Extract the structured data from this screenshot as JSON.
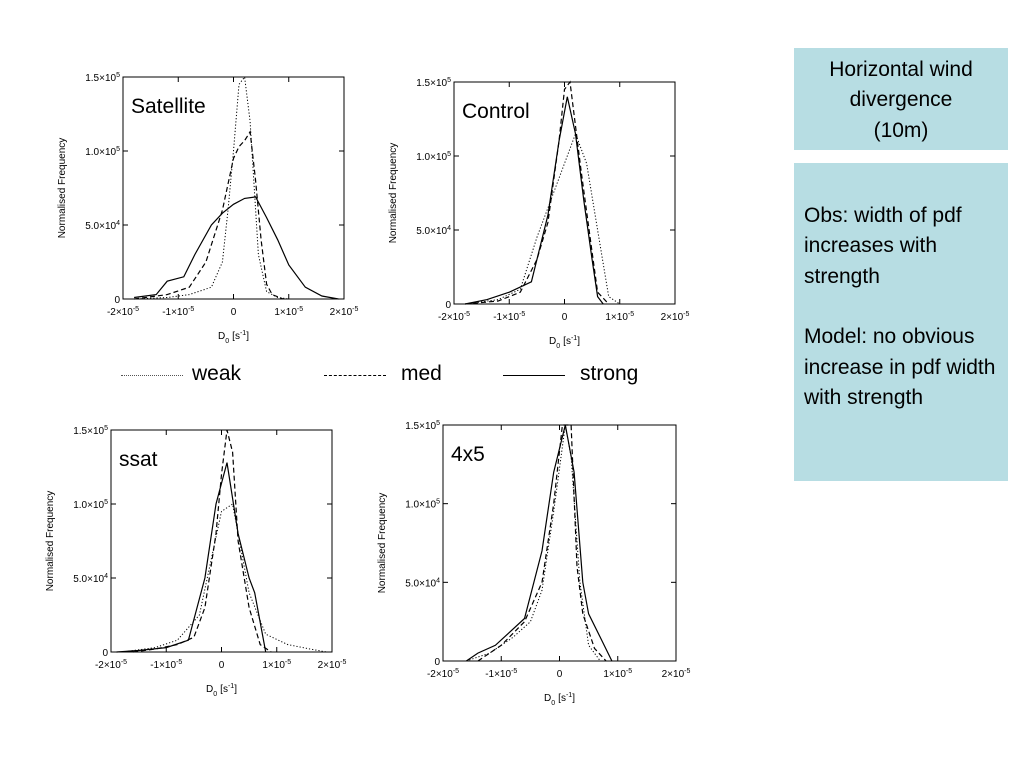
{
  "title_box": {
    "lines": [
      "Horizontal wind",
      "divergence",
      "(10m)"
    ]
  },
  "notes": {
    "obs": "Obs: width of pdf increases with strength",
    "model": "Model: no obvious increase in pdf width with strength"
  },
  "legend": [
    {
      "label": "weak",
      "style": "dotted"
    },
    {
      "label": "med",
      "style": "dashed"
    },
    {
      "label": "strong",
      "style": "solid"
    }
  ],
  "chart_data": [
    {
      "type": "line",
      "title": "Satellite",
      "ylabel": "Normalised Frequency",
      "xlabel_main": "D",
      "xlabel_sub": "0",
      "xlabel_unit": "[s-1]",
      "xlim": [
        -2e-05,
        2e-05
      ],
      "ylim": [
        0,
        150000
      ],
      "xticks": [
        -2e-05,
        -1e-05,
        0,
        1e-05,
        2e-05
      ],
      "xtick_labels": [
        "-2×10-5",
        "-1×10-5",
        "0",
        "1×10-5",
        "2×10-5"
      ],
      "yticks": [
        0,
        50000,
        100000,
        150000
      ],
      "ytick_labels": [
        "0",
        "5.0×104",
        "1.0×105",
        "1.5×105"
      ],
      "series": [
        {
          "name": "weak",
          "style": "dotted",
          "x": [
            -1.8e-05,
            -1.2e-05,
            -8e-06,
            -4e-06,
            -2e-06,
            -1e-06,
            0,
            1e-06,
            2e-06,
            3e-06,
            4.5e-06,
            6e-06,
            8e-06,
            1e-05
          ],
          "y": [
            0,
            1000,
            3000,
            8000,
            25000,
            60000,
            100000,
            145000,
            150000,
            120000,
            30000,
            5000,
            1000,
            0
          ]
        },
        {
          "name": "med",
          "style": "dashed",
          "x": [
            -1.8e-05,
            -1.2e-05,
            -8e-06,
            -5e-06,
            -2e-06,
            0,
            1e-06,
            2e-06,
            3e-06,
            4e-06,
            5e-06,
            6e-06,
            7e-06,
            9e-06
          ],
          "y": [
            0,
            3000,
            8000,
            25000,
            60000,
            95000,
            103000,
            107000,
            113000,
            80000,
            40000,
            10000,
            3000,
            0
          ]
        },
        {
          "name": "strong",
          "style": "solid",
          "x": [
            -1.8e-05,
            -1.4e-05,
            -1.2e-05,
            -9e-06,
            -7e-06,
            -4e-06,
            -2e-06,
            0,
            2e-06,
            4e-06,
            6e-06,
            8e-06,
            1e-05,
            1.3e-05,
            1.6e-05,
            1.9e-05
          ],
          "y": [
            1000,
            3000,
            12000,
            15000,
            30000,
            50000,
            58000,
            64000,
            68000,
            69000,
            55000,
            40000,
            23000,
            8000,
            2000,
            0
          ]
        }
      ]
    },
    {
      "type": "line",
      "title": "Control",
      "ylabel": "Normalised Frequency",
      "xlabel_main": "D",
      "xlabel_sub": "0",
      "xlabel_unit": "[s-1]",
      "xlim": [
        -2e-05,
        2e-05
      ],
      "ylim": [
        0,
        150000
      ],
      "xticks": [
        -2e-05,
        -1e-05,
        0,
        1e-05,
        2e-05
      ],
      "xtick_labels": [
        "-2×10-5",
        "-1×10-5",
        "0",
        "1×10-5",
        "2×10-5"
      ],
      "yticks": [
        0,
        50000,
        100000,
        150000
      ],
      "ytick_labels": [
        "0",
        "5.0×104",
        "1.0×105",
        "1.5×105"
      ],
      "series": [
        {
          "name": "weak",
          "style": "dotted",
          "x": [
            -1.8e-05,
            -1.2e-05,
            -8e-06,
            -5e-06,
            -2e-06,
            0,
            2e-06,
            4e-06,
            6e-06,
            8e-06,
            1e-05
          ],
          "y": [
            0,
            3000,
            10000,
            45000,
            75000,
            95000,
            115000,
            95000,
            50000,
            5000,
            0
          ]
        },
        {
          "name": "med",
          "style": "dashed",
          "x": [
            -1.8e-05,
            -1.2e-05,
            -8e-06,
            -5e-06,
            -3e-06,
            -1e-06,
            0,
            1e-06,
            3e-06,
            5e-06,
            6e-06,
            8e-06
          ],
          "y": [
            0,
            2000,
            8000,
            30000,
            55000,
            110000,
            145000,
            150000,
            90000,
            35000,
            8000,
            0
          ]
        },
        {
          "name": "strong",
          "style": "solid",
          "x": [
            -1.8e-05,
            -1.4e-05,
            -1e-05,
            -6e-06,
            -3e-06,
            -1e-06,
            5e-07,
            2e-06,
            3.5e-06,
            5e-06,
            6e-06,
            7e-06
          ],
          "y": [
            0,
            3000,
            8000,
            15000,
            60000,
            110000,
            140000,
            115000,
            70000,
            30000,
            5000,
            0
          ]
        }
      ]
    },
    {
      "type": "line",
      "title": "ssat",
      "ylabel": "Normalised Frequency",
      "xlabel_main": "D",
      "xlabel_sub": "0",
      "xlabel_unit": "[s-1]",
      "xlim": [
        -2e-05,
        2e-05
      ],
      "ylim": [
        0,
        150000
      ],
      "xticks": [
        -2e-05,
        -1e-05,
        0,
        1e-05,
        2e-05
      ],
      "xtick_labels": [
        "-2×10-5",
        "-1×10-5",
        "0",
        "1×10-5",
        "2×10-5"
      ],
      "yticks": [
        0,
        50000,
        100000,
        150000
      ],
      "ytick_labels": [
        "0",
        "5.0×104",
        "1.0×105",
        "1.5×105"
      ],
      "series": [
        {
          "name": "weak",
          "style": "dotted",
          "x": [
            -1.8e-05,
            -1.2e-05,
            -8e-06,
            -4e-06,
            -2e-06,
            0,
            2e-06,
            5e-06,
            8e-06,
            1.2e-05,
            1.6e-05,
            1.9e-05
          ],
          "y": [
            0,
            3000,
            8000,
            25000,
            60000,
            95000,
            100000,
            40000,
            12000,
            5000,
            2000,
            0
          ]
        },
        {
          "name": "med",
          "style": "dashed",
          "x": [
            -1.6e-05,
            -1.2e-05,
            -8e-06,
            -5e-06,
            -3e-06,
            -1e-06,
            0,
            1e-06,
            2e-06,
            3e-06,
            5e-06,
            7e-06,
            9e-06
          ],
          "y": [
            0,
            2000,
            5000,
            10000,
            30000,
            80000,
            120000,
            150000,
            135000,
            75000,
            30000,
            5000,
            0
          ]
        },
        {
          "name": "strong",
          "style": "solid",
          "x": [
            -1.9e-05,
            -1.5e-05,
            -1e-05,
            -6e-06,
            -3e-06,
            -1e-06,
            1e-06,
            3e-06,
            5e-06,
            6e-06,
            7e-06,
            8e-06
          ],
          "y": [
            0,
            1000,
            3000,
            8000,
            50000,
            100000,
            128000,
            80000,
            50000,
            40000,
            20000,
            0
          ]
        }
      ]
    },
    {
      "type": "line",
      "title": "4x5",
      "ylabel": "Normalised Frequency",
      "xlabel_main": "D",
      "xlabel_sub": "0",
      "xlabel_unit": "[s-1]",
      "xlim": [
        -2e-05,
        2e-05
      ],
      "ylim": [
        0,
        150000
      ],
      "xticks": [
        -2e-05,
        -1e-05,
        0,
        1e-05,
        2e-05
      ],
      "xtick_labels": [
        "-2×10-5",
        "-1×10-5",
        "0",
        "1×10-5",
        "2×10-5"
      ],
      "yticks": [
        0,
        50000,
        100000,
        150000
      ],
      "ytick_labels": [
        "0",
        "5.0×104",
        "1.0×105",
        "1.5×105"
      ],
      "series": [
        {
          "name": "weak",
          "style": "dotted",
          "x": [
            -1.6e-05,
            -1.2e-05,
            -8e-06,
            -5e-06,
            -3e-06,
            -1e-06,
            1e-06,
            2e-06,
            3.5e-06,
            5e-06,
            7e-06
          ],
          "y": [
            0,
            5000,
            15000,
            25000,
            45000,
            95000,
            150000,
            130000,
            50000,
            10000,
            0
          ]
        },
        {
          "name": "med",
          "style": "dashed",
          "x": [
            -1.4e-05,
            -1e-05,
            -6e-06,
            -3e-06,
            -1e-06,
            5e-07,
            2e-06,
            3e-06,
            4e-06,
            6e-06,
            8e-06
          ],
          "y": [
            0,
            10000,
            25000,
            50000,
            100000,
            150000,
            150000,
            60000,
            30000,
            8000,
            0
          ]
        },
        {
          "name": "strong",
          "style": "solid",
          "x": [
            -1.6e-05,
            -1.4e-05,
            -1.1e-05,
            -6e-06,
            -3e-06,
            -1e-06,
            1e-06,
            2.5e-06,
            4e-06,
            5e-06,
            7e-06,
            9e-06
          ],
          "y": [
            0,
            5000,
            10000,
            27000,
            70000,
            120000,
            150000,
            120000,
            50000,
            30000,
            15000,
            0
          ]
        }
      ]
    }
  ]
}
